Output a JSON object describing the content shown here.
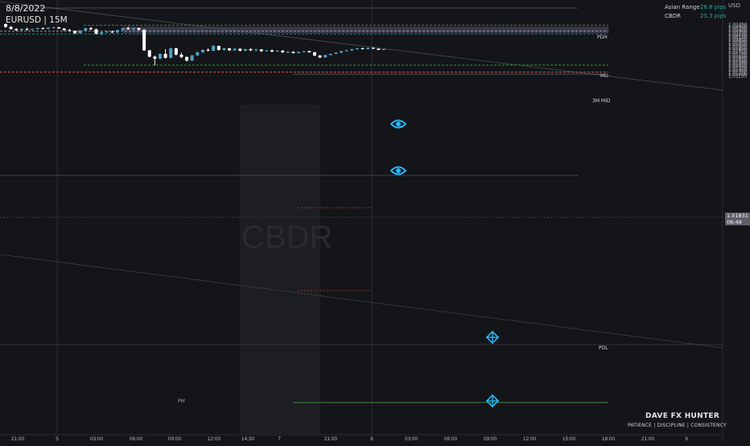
{
  "header": {
    "date": "8/8/2022",
    "symbol": "EURUSD | 15M"
  },
  "info_panel": [
    {
      "label": "Asian Range",
      "value": "26.8 pips"
    },
    {
      "label": "CBDR",
      "value": "25.3 pips"
    }
  ],
  "currency": "USD",
  "current_price": {
    "value": "1.01831",
    "countdown": "06:49"
  },
  "level_labels": {
    "pdh": "PDH",
    "mo": "MO",
    "three_m_mid": "3M MID",
    "pdl": "PDL",
    "pm": "PM"
  },
  "watermark": "CBDR",
  "branding": {
    "name": "DAVE FX HUNTER",
    "tagline": "PATIENCE  |  DISCIPLINE  |  CONSISTENCY"
  },
  "icons": {
    "eye": "eye-icon",
    "target": "crosshair-icon"
  },
  "colors": {
    "bull": "#4f9fc4",
    "bear": "#ffffff",
    "teal": "#26a69a",
    "green": "#4caf50",
    "red": "#ef5350",
    "box": "#5a5672"
  },
  "chart_data": {
    "type": "candlestick",
    "yticks": [
      "1.02450",
      "1.02400",
      "1.02350",
      "1.02300",
      "1.02250",
      "1.02200",
      "1.02150",
      "1.02100",
      "1.02050",
      "1.02000",
      "1.01950",
      "1.01900",
      "1.01850",
      "1.01800",
      "1.01750",
      "1.01700",
      "1.01650",
      "1.01600",
      "1.01550",
      "1.01500",
      "1.01450",
      "1.01400",
      "1.01350",
      "1.01300",
      "1.01250",
      "1.01200",
      "1.01150"
    ],
    "xticks": [
      "21:00",
      "5",
      "03:00",
      "06:00",
      "09:00",
      "12:00",
      "14:30",
      "7",
      "21:00",
      "8",
      "03:00",
      "06:00",
      "09:00",
      "12:00",
      "15:00",
      "18:00",
      "21:00",
      "9"
    ],
    "ylim": [
      1.0113,
      1.0248
    ],
    "candles": [
      [
        1.0245,
        1.0247,
        1.0236,
        1.0238
      ],
      [
        1.0238,
        1.024,
        1.0231,
        1.0233
      ],
      [
        1.0233,
        1.0235,
        1.0228,
        1.023
      ],
      [
        1.023,
        1.0234,
        1.0228,
        1.0233
      ],
      [
        1.0233,
        1.0236,
        1.0229,
        1.0231
      ],
      [
        1.0231,
        1.0234,
        1.0229,
        1.0233
      ],
      [
        1.0233,
        1.0236,
        1.0231,
        1.0235
      ],
      [
        1.0235,
        1.0237,
        1.0232,
        1.0233
      ],
      [
        1.0233,
        1.0237,
        1.0232,
        1.0236
      ],
      [
        1.0236,
        1.0239,
        1.0234,
        1.0237
      ],
      [
        1.0237,
        1.0238,
        1.0233,
        1.0234
      ],
      [
        1.0234,
        1.0235,
        1.0228,
        1.023
      ],
      [
        1.023,
        1.0233,
        1.0226,
        1.0228
      ],
      [
        1.0228,
        1.0229,
        1.022,
        1.0222
      ],
      [
        1.0222,
        1.023,
        1.0221,
        1.0229
      ],
      [
        1.0229,
        1.0236,
        1.0228,
        1.0235
      ],
      [
        1.0235,
        1.0238,
        1.023,
        1.0232
      ],
      [
        1.0232,
        1.0234,
        1.0219,
        1.0221
      ],
      [
        1.0221,
        1.0226,
        1.0217,
        1.0225
      ],
      [
        1.0225,
        1.0229,
        1.0223,
        1.0226
      ],
      [
        1.0226,
        1.0229,
        1.0222,
        1.0224
      ],
      [
        1.0224,
        1.0231,
        1.0223,
        1.023
      ],
      [
        1.023,
        1.0236,
        1.0229,
        1.0235
      ],
      [
        1.0235,
        1.0239,
        1.0231,
        1.0232
      ],
      [
        1.0232,
        1.0237,
        1.023,
        1.0235
      ],
      [
        1.0235,
        1.0236,
        1.0229,
        1.0231
      ],
      [
        1.0231,
        1.0232,
        1.0177,
        1.0179
      ],
      [
        1.0179,
        1.018,
        1.0161,
        1.0163
      ],
      [
        1.0163,
        1.0166,
        1.0141,
        1.0158
      ],
      [
        1.0158,
        1.0172,
        1.0156,
        1.017
      ],
      [
        1.017,
        1.0182,
        1.0158,
        1.016
      ],
      [
        1.016,
        1.0186,
        1.0159,
        1.0184
      ],
      [
        1.0184,
        1.0186,
        1.0166,
        1.0168
      ],
      [
        1.0168,
        1.0173,
        1.0159,
        1.0162
      ],
      [
        1.0162,
        1.0164,
        1.0151,
        1.0153
      ],
      [
        1.0153,
        1.0168,
        1.0152,
        1.0166
      ],
      [
        1.0166,
        1.0176,
        1.0164,
        1.0174
      ],
      [
        1.0174,
        1.0182,
        1.0172,
        1.018
      ],
      [
        1.018,
        1.0184,
        1.0176,
        1.0178
      ],
      [
        1.0178,
        1.0193,
        1.0176,
        1.019
      ],
      [
        1.019,
        1.0191,
        1.0178,
        1.018
      ],
      [
        1.018,
        1.0186,
        1.0177,
        1.0184
      ],
      [
        1.0184,
        1.0185,
        1.0177,
        1.0179
      ],
      [
        1.0179,
        1.0185,
        1.0177,
        1.0183
      ],
      [
        1.0183,
        1.0184,
        1.0176,
        1.0178
      ],
      [
        1.0178,
        1.0183,
        1.0176,
        1.0182
      ],
      [
        1.0182,
        1.0185,
        1.0177,
        1.0179
      ],
      [
        1.0179,
        1.0183,
        1.0176,
        1.0181
      ],
      [
        1.0181,
        1.0182,
        1.0175,
        1.0177
      ],
      [
        1.0177,
        1.018,
        1.0175,
        1.0179
      ],
      [
        1.0179,
        1.0181,
        1.0174,
        1.0176
      ],
      [
        1.0176,
        1.018,
        1.0175,
        1.0178
      ],
      [
        1.0178,
        1.018,
        1.0172,
        1.0174
      ],
      [
        1.0174,
        1.0177,
        1.0172,
        1.0175
      ],
      [
        1.0175,
        1.0177,
        1.0171,
        1.0172
      ],
      [
        1.0172,
        1.0176,
        1.0171,
        1.0175
      ],
      [
        1.0175,
        1.0178,
        1.0173,
        1.0177
      ],
      [
        1.0177,
        1.0178,
        1.0173,
        1.0174
      ],
      [
        1.0174,
        1.0175,
        1.0164,
        1.0166
      ],
      [
        1.0166,
        1.0167,
        1.0159,
        1.0161
      ],
      [
        1.0161,
        1.0168,
        1.016,
        1.0167
      ],
      [
        1.0167,
        1.0171,
        1.0166,
        1.017
      ],
      [
        1.017,
        1.0174,
        1.0169,
        1.0173
      ],
      [
        1.0173,
        1.0178,
        1.0172,
        1.0177
      ],
      [
        1.0177,
        1.0181,
        1.0175,
        1.0179
      ],
      [
        1.0179,
        1.0183,
        1.0177,
        1.0182
      ],
      [
        1.0182,
        1.0185,
        1.018,
        1.0184
      ],
      [
        1.0184,
        1.0186,
        1.0181,
        1.0182
      ],
      [
        1.0182,
        1.0186,
        1.0181,
        1.0185
      ],
      [
        1.0185,
        1.0187,
        1.0182,
        1.0183
      ],
      [
        1.0183,
        1.0184,
        1.0179,
        1.018
      ],
      [
        1.018,
        1.0183,
        1.0179,
        1.0182
      ]
    ],
    "levels": [
      {
        "name": "PDH",
        "price": 1.02425,
        "style": "dashed",
        "color": "#4caf50"
      },
      {
        "name": "MO",
        "price": 1.02274,
        "style": "dashed",
        "color": "#9e9e9e"
      },
      {
        "name": "3M MID",
        "price": 1.02203,
        "style": "dashed",
        "color": "#26a69a"
      },
      {
        "name": "PDL",
        "price": 1.01416,
        "style": "dashed",
        "color": "#4caf50"
      },
      {
        "name": "PM",
        "price": 1.0124,
        "style": "dashed",
        "color": "#ef5350"
      }
    ]
  }
}
